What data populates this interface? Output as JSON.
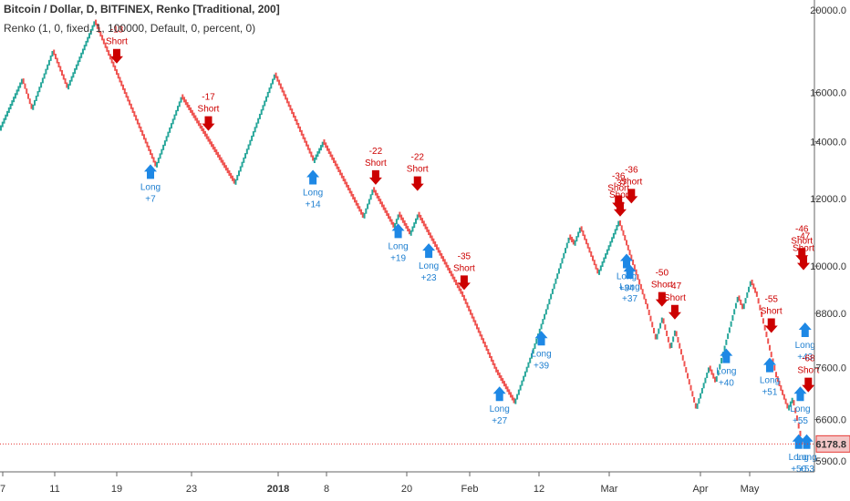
{
  "header": {
    "title": "Bitcoin / Dollar, D, BITFINEX, Renko [Traditional, 200]",
    "indicator": "Renko (1, 0, fixed, 1, 100000, Default, 0, percent, 0)"
  },
  "colors": {
    "up": "#26a69a",
    "down": "#ef5350",
    "short": "#cc0000",
    "long": "#1e88e5",
    "last": "#e53935"
  },
  "chart_data": {
    "type": "renko",
    "box_size": 200,
    "log_scale": true,
    "ylim": [
      5800,
      20300
    ],
    "price_ticks": [
      "20000.0",
      "16000.0",
      "14000.0",
      "12000.0",
      "10000.0",
      "8800.0",
      "7600.0",
      "6600.0",
      "5900.0"
    ],
    "last_price": "6178.8",
    "x_labels": [
      "7",
      "11",
      "19",
      "23",
      "2018",
      "8",
      "20",
      "Feb",
      "12",
      "Mar",
      "Apr",
      "May"
    ],
    "path": [
      {
        "bricks": 14,
        "dir": 1,
        "end": 16600
      },
      {
        "bricks": 6,
        "dir": -1,
        "end": 15300
      },
      {
        "bricks": 13,
        "dir": 1,
        "end": 17900
      },
      {
        "bricks": 9,
        "dir": -1,
        "end": 16200
      },
      {
        "bricks": 17,
        "dir": 1,
        "end": 19400
      },
      {
        "bricks": 38,
        "dir": -1,
        "end": 13100
      },
      {
        "bricks": 16,
        "dir": 1,
        "end": 15800
      },
      {
        "bricks": 33,
        "dir": -1,
        "end": 12500
      },
      {
        "bricks": 25,
        "dir": 1,
        "end": 16800
      },
      {
        "bricks": 24,
        "dir": -1,
        "end": 13300
      },
      {
        "bricks": 6,
        "dir": 1,
        "end": 14000
      },
      {
        "bricks": 25,
        "dir": -1,
        "end": 11400
      },
      {
        "bricks": 6,
        "dir": 1,
        "end": 12300
      },
      {
        "bricks": 13,
        "dir": -1,
        "end": 11100
      },
      {
        "bricks": 3,
        "dir": 1,
        "end": 11500
      },
      {
        "bricks": 7,
        "dir": -1,
        "end": 10900
      },
      {
        "bricks": 5,
        "dir": 1,
        "end": 11500
      },
      {
        "bricks": 28,
        "dir": -1,
        "end": 9200
      },
      {
        "bricks": 21,
        "dir": -1,
        "end": 7500
      },
      {
        "bricks": 11,
        "dir": -1,
        "end": 6900
      },
      {
        "bricks": 11,
        "dir": 1,
        "end": 7900
      },
      {
        "bricks": 9,
        "dir": 1,
        "end": 8900
      },
      {
        "bricks": 14,
        "dir": 1,
        "end": 10800
      },
      {
        "bricks": 3,
        "dir": -1,
        "end": 10600
      },
      {
        "bricks": 4,
        "dir": 1,
        "end": 11100
      },
      {
        "bricks": 11,
        "dir": -1,
        "end": 9800
      },
      {
        "bricks": 13,
        "dir": 1,
        "end": 11300
      },
      {
        "bricks": 18,
        "dir": -1,
        "end": 8900
      },
      {
        "bricks": 5,
        "dir": -1,
        "end": 8200
      },
      {
        "bricks": 4,
        "dir": 1,
        "end": 8700
      },
      {
        "bricks": 5,
        "dir": -1,
        "end": 8000
      },
      {
        "bricks": 3,
        "dir": 1,
        "end": 8400
      },
      {
        "bricks": 13,
        "dir": -1,
        "end": 6800
      },
      {
        "bricks": 8,
        "dir": 1,
        "end": 7600
      },
      {
        "bricks": 4,
        "dir": -1,
        "end": 7300
      },
      {
        "bricks": 14,
        "dir": 1,
        "end": 9200
      },
      {
        "bricks": 3,
        "dir": -1,
        "end": 8900
      },
      {
        "bricks": 5,
        "dir": 1,
        "end": 9600
      },
      {
        "bricks": 4,
        "dir": -1,
        "end": 9200
      },
      {
        "bricks": 12,
        "dir": -1,
        "end": 7400
      },
      {
        "bricks": 7,
        "dir": -1,
        "end": 6800
      },
      {
        "bricks": 3,
        "dir": 1,
        "end": 7000
      },
      {
        "bricks": 6,
        "dir": -1,
        "end": 6178.8
      }
    ],
    "signals": [
      {
        "side": "short",
        "price": 16800,
        "label": "Short",
        "value": "-13"
      },
      {
        "side": "long",
        "price": 13500,
        "label": "Long",
        "value": "+7"
      },
      {
        "side": "short",
        "price": 14000,
        "label": "Short",
        "value": "-17"
      },
      {
        "side": "long",
        "price": 13300,
        "label": "Long",
        "value": "+14"
      },
      {
        "side": "short",
        "price": 12100,
        "label": "Short",
        "value": "-22"
      },
      {
        "side": "long",
        "price": 11500,
        "label": "Long",
        "value": "+19"
      },
      {
        "side": "short",
        "price": 11900,
        "label": "Short",
        "value": "-22"
      },
      {
        "side": "long",
        "price": 10900,
        "label": "Long",
        "value": "+23"
      },
      {
        "side": "short",
        "price": 9100,
        "label": "Short",
        "value": "-35"
      },
      {
        "side": "long",
        "price": 7400,
        "label": "Long",
        "value": "+27"
      },
      {
        "side": "long",
        "price": 8600,
        "label": "Long",
        "value": "+39"
      },
      {
        "side": "short",
        "price": 11300,
        "label": "Short",
        "value": "-36"
      },
      {
        "side": "short",
        "price": 11100,
        "label": "Short",
        "value": "-37"
      },
      {
        "side": "long",
        "price": 10600,
        "label": "Long",
        "value": "+34"
      },
      {
        "side": "long",
        "price": 10300,
        "label": "Long",
        "value": "+37"
      },
      {
        "side": "short",
        "price": 11500,
        "label": "Short",
        "value": "-36"
      },
      {
        "side": "short",
        "price": 8700,
        "label": "Short",
        "value": "-50"
      },
      {
        "side": "short",
        "price": 8400,
        "label": "Short",
        "value": "-47"
      },
      {
        "side": "long",
        "price": 8200,
        "label": "Long",
        "value": "+40"
      },
      {
        "side": "long",
        "price": 8000,
        "label": "Long",
        "value": "+51"
      },
      {
        "side": "short",
        "price": 8100,
        "label": "Short",
        "value": "-55"
      },
      {
        "side": "long",
        "price": 6500,
        "label": "Long",
        "value": "+50"
      },
      {
        "side": "long",
        "price": 7400,
        "label": "Long",
        "value": "+55"
      },
      {
        "side": "short",
        "price": 9800,
        "label": "Short",
        "value": "-46"
      },
      {
        "side": "short",
        "price": 9600,
        "label": "Short",
        "value": "-47"
      },
      {
        "side": "long",
        "price": 8800,
        "label": "Long",
        "value": "+43"
      },
      {
        "side": "long",
        "price": 6500,
        "label": "Long",
        "value": "+53"
      },
      {
        "side": "short",
        "price": 6900,
        "label": "Short",
        "value": "-68"
      }
    ]
  }
}
